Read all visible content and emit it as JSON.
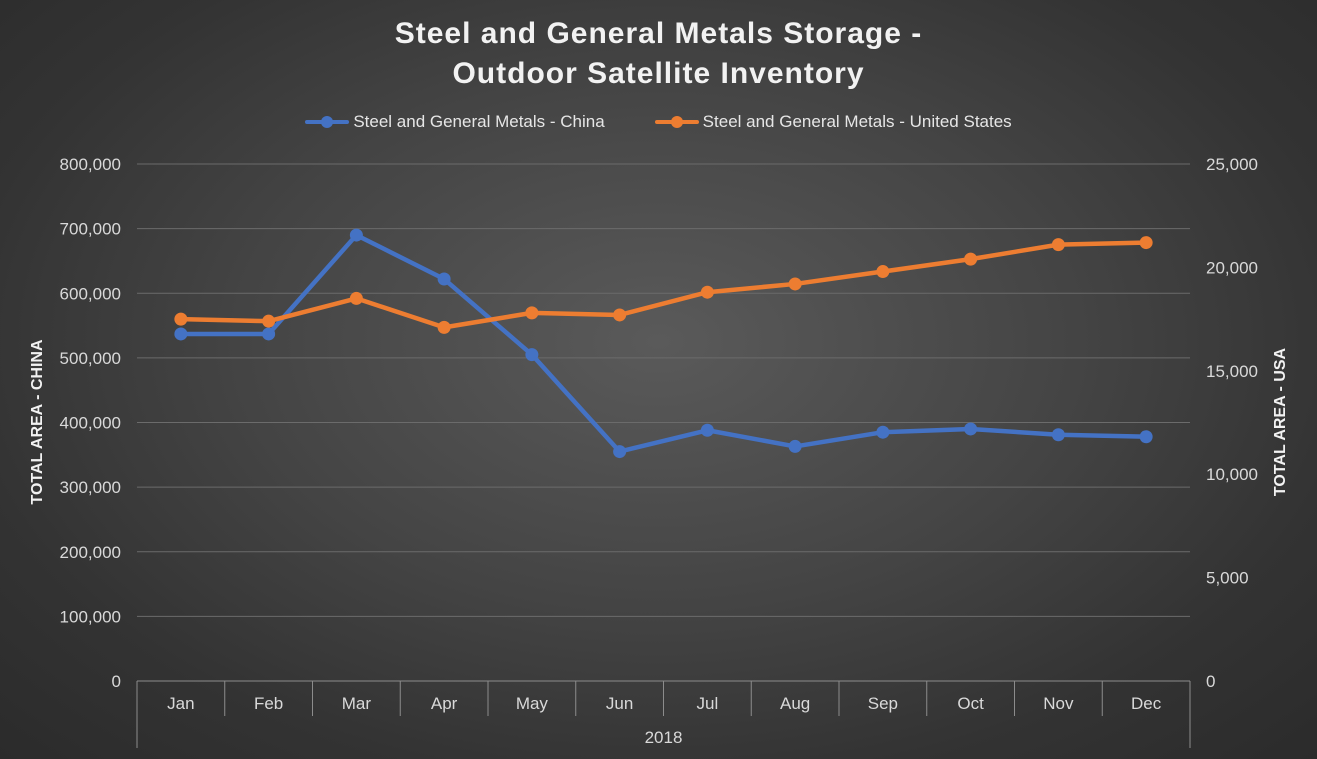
{
  "chart_data": {
    "type": "line",
    "title_lines": [
      "Steel and General Metals Storage -",
      "Outdoor Satellite Inventory"
    ],
    "categories": [
      "Jan",
      "Feb",
      "Mar",
      "Apr",
      "May",
      "Jun",
      "Jul",
      "Aug",
      "Sep",
      "Oct",
      "Nov",
      "Dec"
    ],
    "category_group": "2018",
    "y_left": {
      "label": "TOTAL AREA - CHINA",
      "lim": [
        0,
        800000
      ],
      "ticks": [
        0,
        100000,
        200000,
        300000,
        400000,
        500000,
        600000,
        700000,
        800000
      ],
      "tick_labels": [
        "0",
        "100,000",
        "200,000",
        "300,000",
        "400,000",
        "500,000",
        "600,000",
        "700,000",
        "800,000"
      ]
    },
    "y_right": {
      "label": "TOTAL AREA - USA",
      "lim": [
        0,
        25000
      ],
      "ticks": [
        0,
        5000,
        10000,
        15000,
        20000,
        25000
      ],
      "tick_labels": [
        "0",
        "5,000",
        "10,000",
        "15,000",
        "20,000",
        "25,000"
      ]
    },
    "series": [
      {
        "name": "Steel and General Metals - China",
        "axis": "left",
        "color": "#4472c4",
        "values": [
          537000,
          537000,
          690000,
          622000,
          505000,
          355000,
          388000,
          363000,
          385000,
          390000,
          381000,
          378000
        ]
      },
      {
        "name": "Steel and General Metals - United States",
        "axis": "right",
        "color": "#ed7d31",
        "values": [
          17500,
          17400,
          18500,
          17100,
          17800,
          17700,
          18800,
          19200,
          19800,
          20400,
          21100,
          21200
        ]
      }
    ],
    "grid": true,
    "legend_position": "top"
  }
}
